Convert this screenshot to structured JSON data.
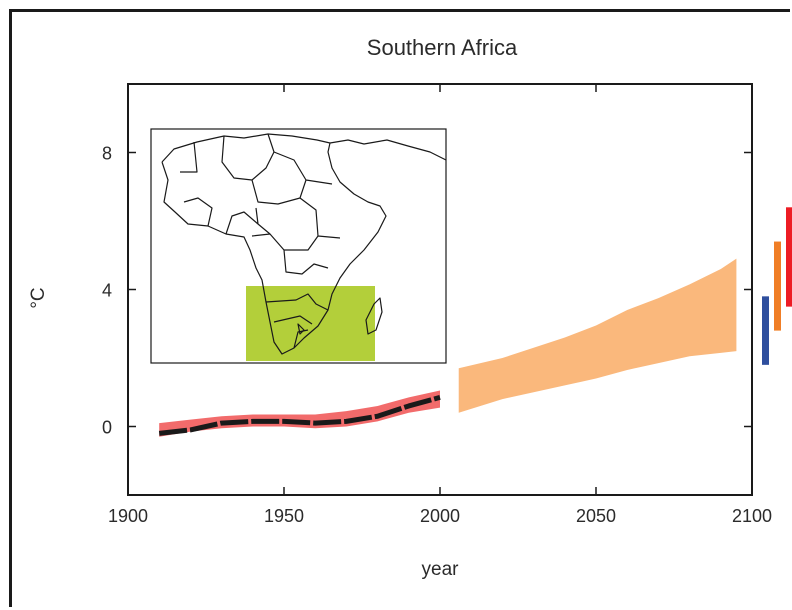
{
  "chart_data": {
    "type": "area",
    "title": "Southern Africa",
    "xlabel": "year",
    "ylabel": "°C",
    "xlim": [
      1900,
      2100
    ],
    "ylim": [
      -2,
      10
    ],
    "x_ticks": [
      "1900",
      "1950",
      "2000",
      "2050",
      "2100"
    ],
    "y_ticks": [
      "0",
      "4",
      "8"
    ],
    "grid": false,
    "legend": "none",
    "series": [
      {
        "kind": "band",
        "color": "#f26b6b",
        "x": [
          1910,
          1920,
          1930,
          1940,
          1950,
          1960,
          1970,
          1980,
          1990,
          2000
        ],
        "lower": [
          -0.3,
          -0.15,
          -0.05,
          0.0,
          0.0,
          -0.05,
          0.0,
          0.15,
          0.4,
          0.55
        ],
        "upper": [
          0.1,
          0.2,
          0.3,
          0.35,
          0.35,
          0.35,
          0.45,
          0.6,
          0.85,
          1.05
        ]
      },
      {
        "kind": "line",
        "color": "#1a1a1a",
        "x": [
          1910,
          1915,
          1920,
          1925,
          1930,
          1940,
          1950,
          1960,
          1970,
          1980,
          1990,
          2000
        ],
        "y": [
          -0.2,
          -0.15,
          -0.1,
          0.0,
          0.1,
          0.15,
          0.15,
          0.1,
          0.15,
          0.3,
          0.6,
          0.85
        ]
      },
      {
        "kind": "band",
        "color": "#fab87c",
        "x": [
          2006,
          2020,
          2030,
          2040,
          2050,
          2060,
          2070,
          2080,
          2090,
          2095
        ],
        "lower": [
          0.4,
          0.8,
          1.0,
          1.2,
          1.4,
          1.65,
          1.85,
          2.05,
          2.15,
          2.2
        ],
        "upper": [
          1.7,
          2.0,
          2.3,
          2.6,
          2.95,
          3.4,
          3.75,
          4.15,
          4.6,
          4.9
        ]
      }
    ],
    "range_bars": [
      {
        "color": "#2f4f9e",
        "low": 1.8,
        "high": 3.8
      },
      {
        "color": "#f07e26",
        "low": 2.8,
        "high": 5.4
      },
      {
        "color": "#ed1c24",
        "low": 3.5,
        "high": 6.4
      }
    ],
    "inset_map": {
      "region": "Southern Africa",
      "highlight_color": "#b3cf3a"
    }
  }
}
